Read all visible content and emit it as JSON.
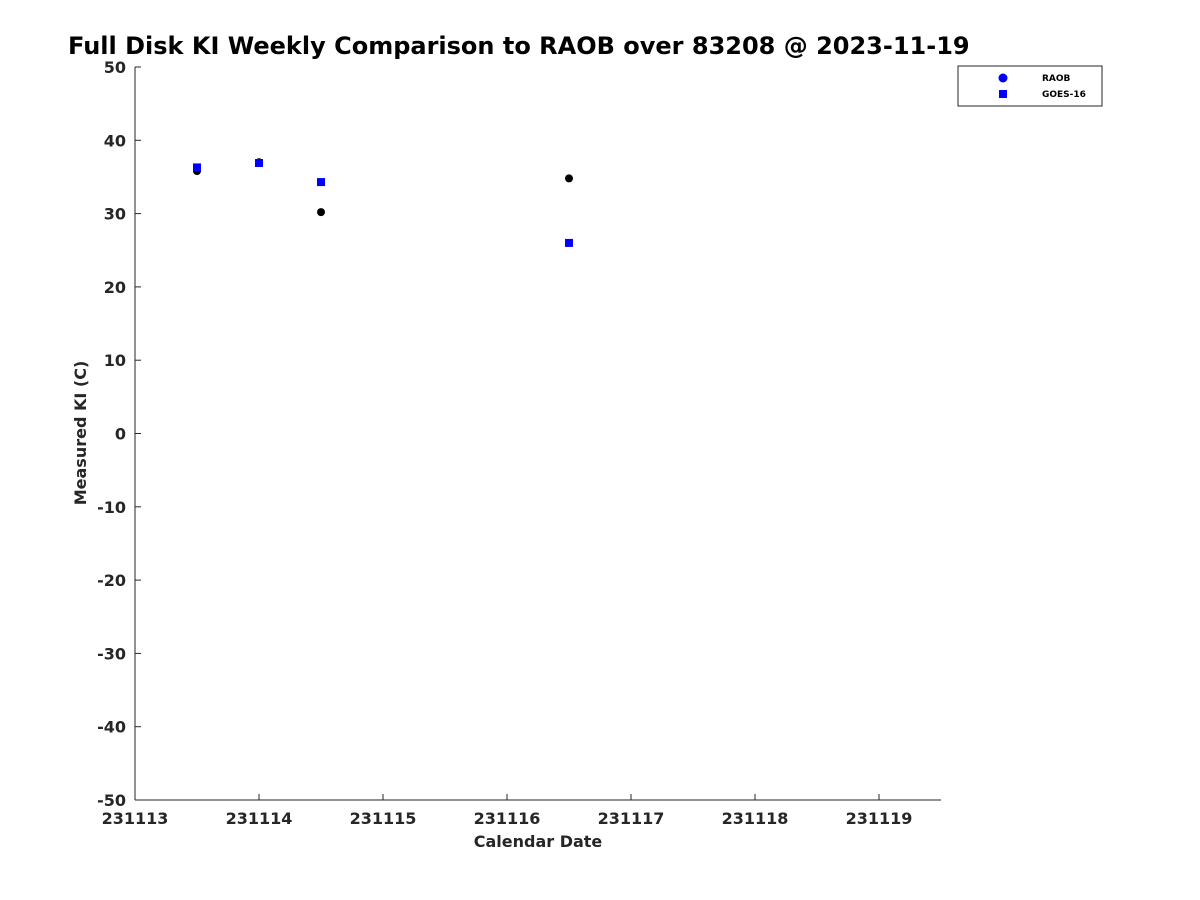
{
  "chart_data": {
    "type": "scatter",
    "title": "Full Disk KI Weekly Comparison to RAOB over 83208 @ 2023-11-19",
    "xlabel": "Calendar Date",
    "ylabel": "Measured KI (C)",
    "xlim": [
      231113,
      231119.5
    ],
    "ylim": [
      -50,
      50
    ],
    "x_ticks": [
      231113,
      231114,
      231115,
      231116,
      231117,
      231118,
      231119
    ],
    "x_tick_labels": [
      "231113",
      "231114",
      "231115",
      "231116",
      "231117",
      "231118",
      "231119"
    ],
    "y_ticks": [
      -50,
      -40,
      -30,
      -20,
      -10,
      0,
      10,
      20,
      30,
      40,
      50
    ],
    "y_tick_labels": [
      "-50",
      "-40",
      "-30",
      "-20",
      "-10",
      "0",
      "10",
      "20",
      "30",
      "40",
      "50"
    ],
    "grid": false,
    "legend_position": "top-right, outside plot",
    "series": [
      {
        "name": "RAOB",
        "marker": "circle",
        "legend_color": "#0000ff",
        "color": "#000000",
        "x": [
          231113.5,
          231114.0,
          231114.5,
          231116.5
        ],
        "y": [
          35.8,
          37.0,
          30.2,
          34.8
        ]
      },
      {
        "name": "GOES-16",
        "marker": "square",
        "color": "#0000ff",
        "x": [
          231113.5,
          231114.0,
          231114.5,
          231116.5
        ],
        "y": [
          36.3,
          36.9,
          34.3,
          26.0
        ]
      }
    ]
  }
}
